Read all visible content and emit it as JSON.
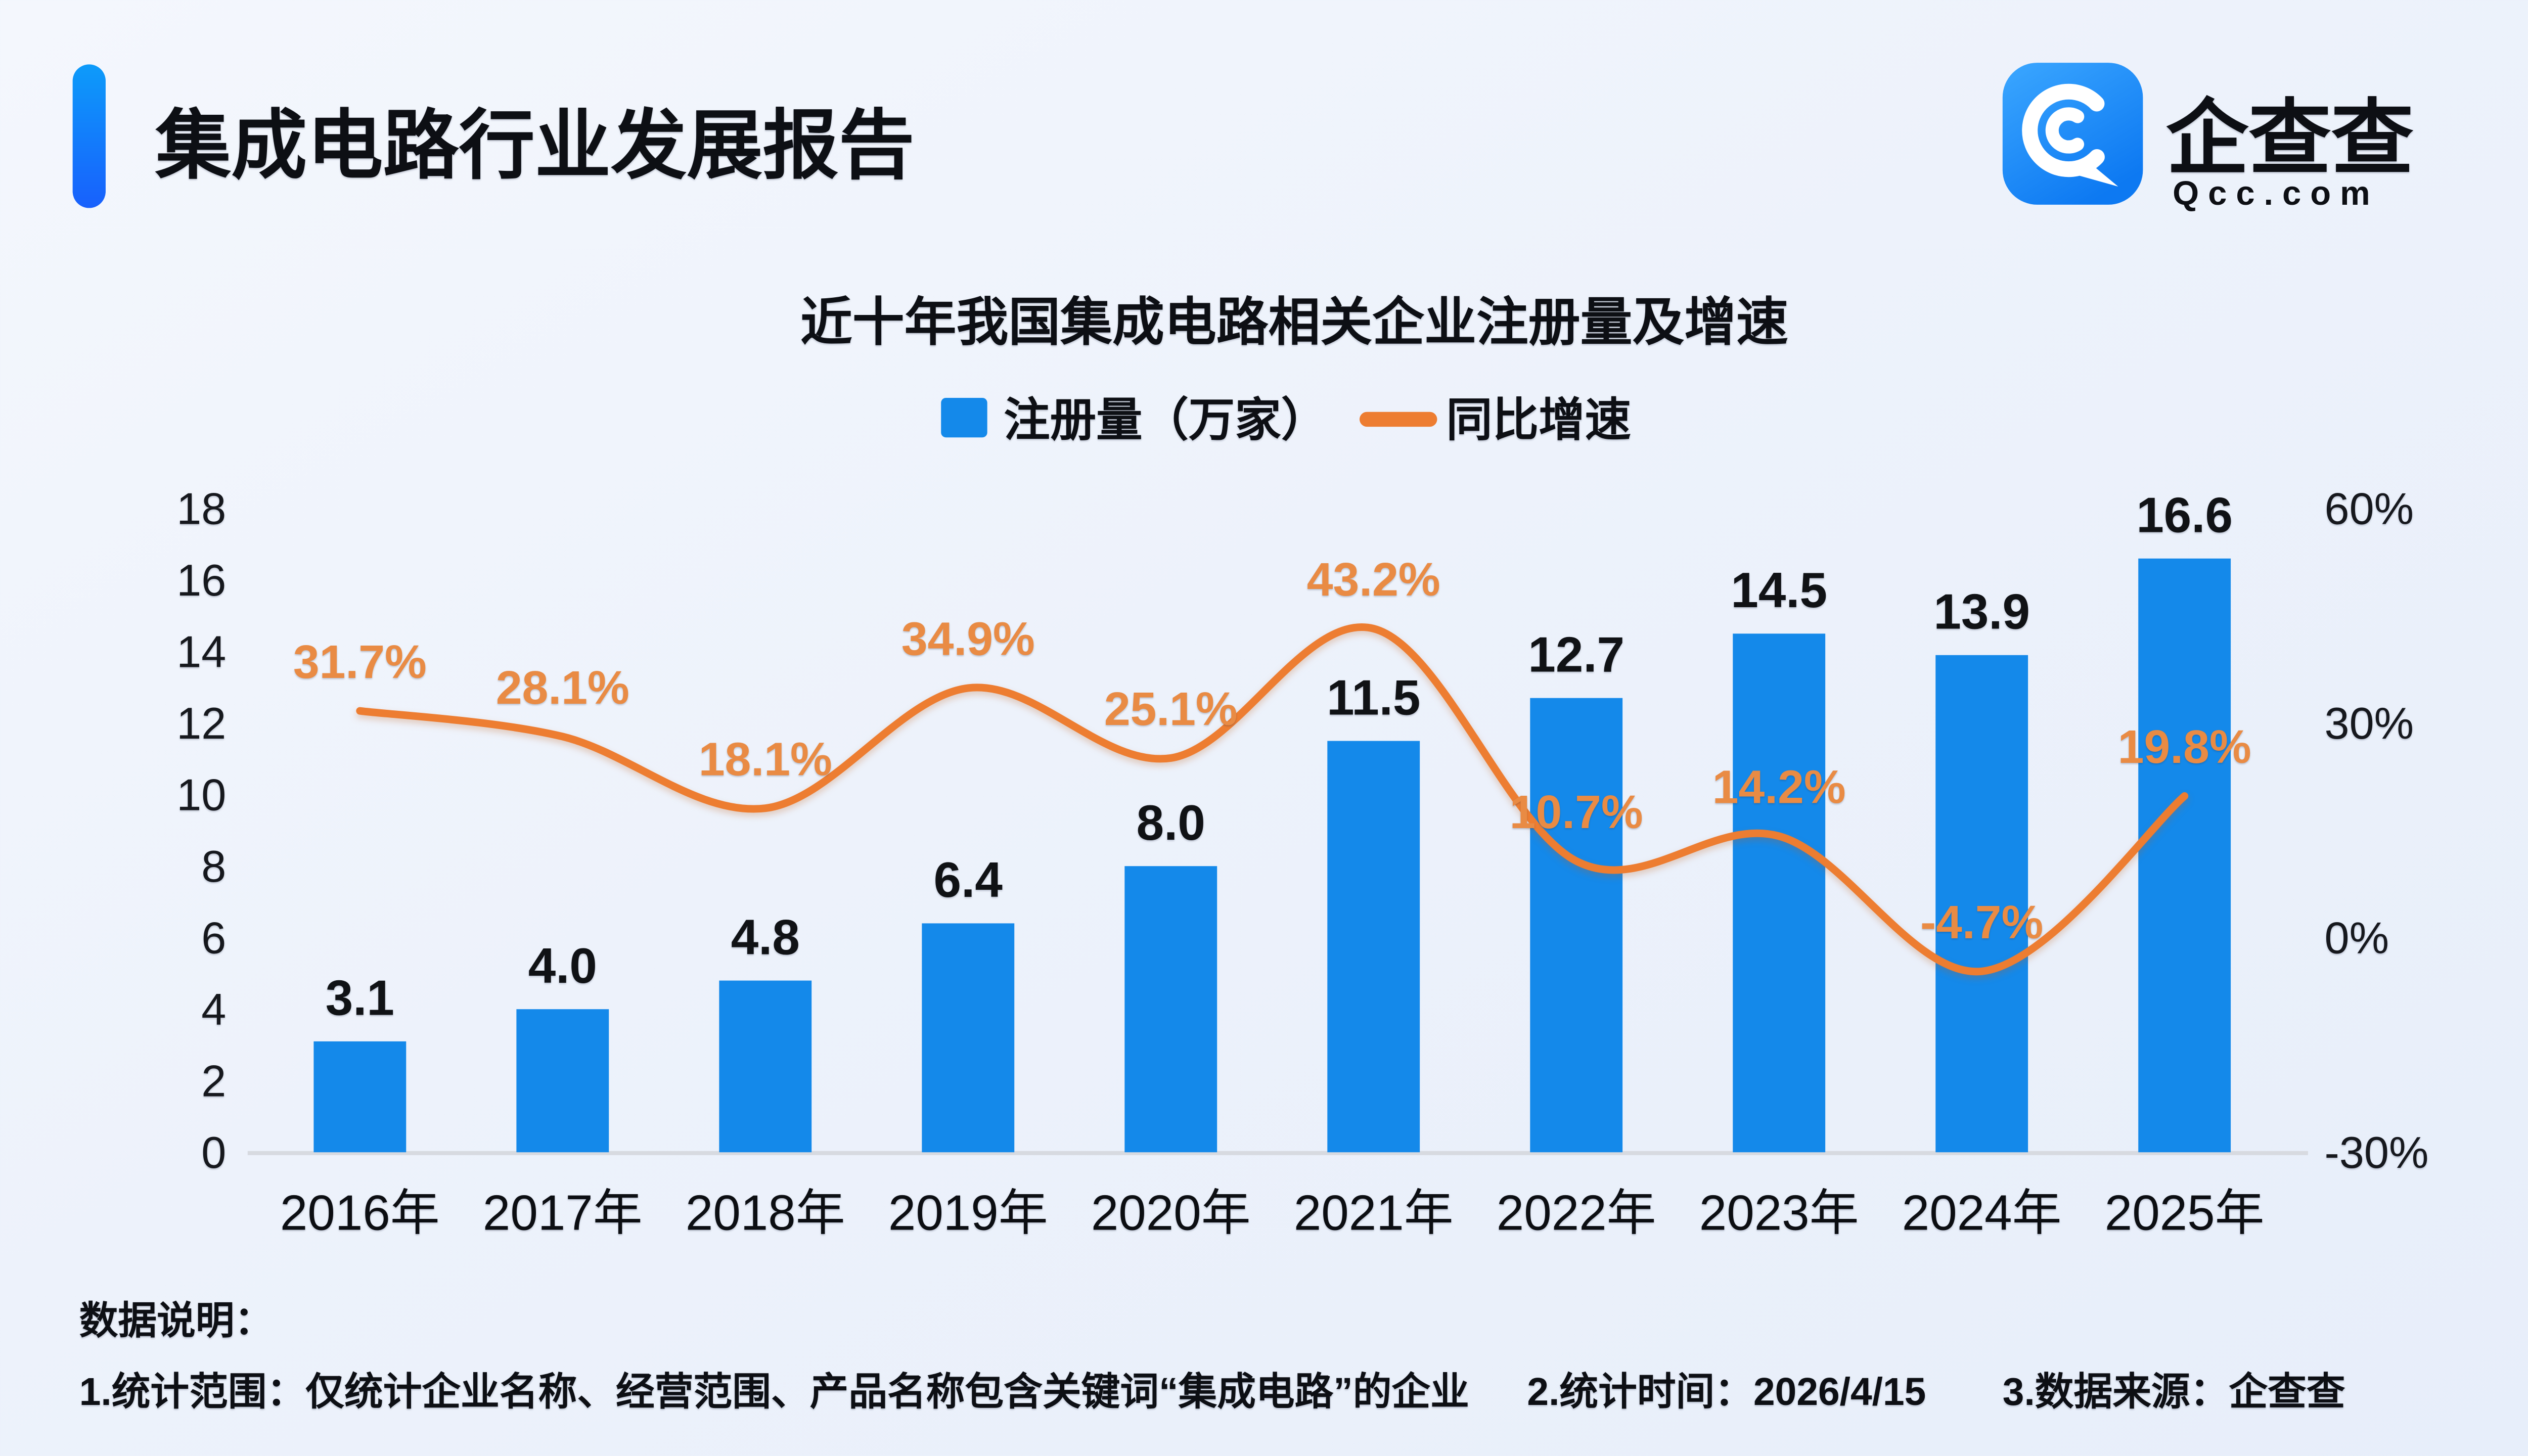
{
  "header": {
    "title": "集成电路行业发展报告"
  },
  "logo": {
    "name": "企查查",
    "domain": "Qcc.com"
  },
  "chart": {
    "title": "近十年我国集成电路相关企业注册量及增速",
    "legend": {
      "bars_label": "注册量（万家）",
      "line_label": "同比增速"
    }
  },
  "chart_data": {
    "type": "bar",
    "title": "近十年我国集成电路相关企业注册量及增速",
    "categories": [
      "2016年",
      "2017年",
      "2018年",
      "2019年",
      "2020年",
      "2021年",
      "2022年",
      "2023年",
      "2024年",
      "2025年"
    ],
    "series": [
      {
        "name": "注册量（万家）",
        "type": "bar",
        "axis": "left",
        "color": "#1489EA",
        "values": [
          3.1,
          4.0,
          4.8,
          6.4,
          8.0,
          11.5,
          12.7,
          14.5,
          13.9,
          16.6
        ]
      },
      {
        "name": "同比增速",
        "type": "line",
        "axis": "right",
        "color": "#ED7D31",
        "unit": "%",
        "values": [
          31.7,
          28.1,
          18.1,
          34.9,
          25.1,
          43.2,
          10.7,
          14.2,
          -4.7,
          19.8
        ]
      }
    ],
    "left_axis": {
      "ticks": [
        0,
        2,
        4,
        6,
        8,
        10,
        12,
        14,
        16,
        18
      ],
      "range": [
        0,
        18
      ]
    },
    "right_axis": {
      "ticks": [
        -30,
        0,
        30,
        60
      ],
      "range": [
        -30,
        60
      ],
      "unit": "%"
    },
    "grid": false,
    "legend_position": "top",
    "label_color": "#E98B44",
    "bar_label_color": "#101215"
  },
  "footer": {
    "heading": "数据说明：",
    "note1": "1.统计范围：仅统计企业名称、经营范围、产品名称包含关键词“集成电路”的企业",
    "note2": "2.统计时间：2026/4/15",
    "note3": "3.数据来源：企查查"
  }
}
